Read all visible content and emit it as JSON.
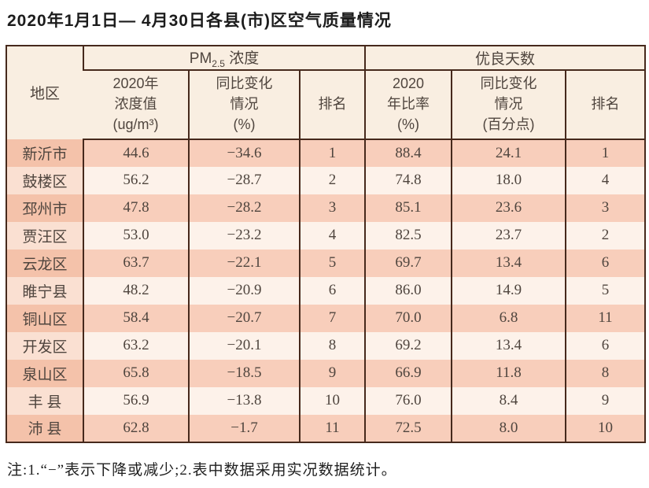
{
  "title": "2020年1月1日— 4月30日各县(市)区空气质量情况",
  "header": {
    "region": "地区",
    "pm25_group": {
      "prefix": "PM",
      "sub": "2.5",
      "suffix": " 浓度"
    },
    "good_days_group": "优良天数",
    "sub_columns": [
      "2020年\n浓度值\n(ug/m³)",
      "同比变化\n情况\n(%)",
      "排名",
      "2020\n年比率\n(%)",
      "同比变化\n情况\n(百分点)",
      "排名"
    ]
  },
  "rows": [
    {
      "region": "新沂市",
      "values": [
        "44.6",
        "−34.6",
        "1",
        "88.4",
        "24.1",
        "1"
      ]
    },
    {
      "region": "鼓楼区",
      "values": [
        "56.2",
        "−28.7",
        "2",
        "74.8",
        "18.0",
        "4"
      ]
    },
    {
      "region": "邳州市",
      "values": [
        "47.8",
        "−28.2",
        "3",
        "85.1",
        "23.6",
        "3"
      ]
    },
    {
      "region": "贾汪区",
      "values": [
        "53.0",
        "−23.2",
        "4",
        "82.5",
        "23.7",
        "2"
      ]
    },
    {
      "region": "云龙区",
      "values": [
        "63.7",
        "−22.1",
        "5",
        "69.7",
        "13.4",
        "6"
      ]
    },
    {
      "region": "睢宁县",
      "values": [
        "48.2",
        "−20.9",
        "6",
        "86.0",
        "14.9",
        "5"
      ]
    },
    {
      "region": "铜山区",
      "values": [
        "58.4",
        "−20.7",
        "7",
        "70.0",
        "6.8",
        "11"
      ]
    },
    {
      "region": "开发区",
      "values": [
        "63.2",
        "−20.1",
        "8",
        "69.2",
        "13.4",
        "6"
      ]
    },
    {
      "region": "泉山区",
      "values": [
        "65.8",
        "−18.5",
        "9",
        "66.9",
        "11.8",
        "8"
      ]
    },
    {
      "region": "丰 县",
      "values": [
        "56.9",
        "−13.8",
        "10",
        "76.0",
        "8.4",
        "9"
      ]
    },
    {
      "region": "沛 县",
      "values": [
        "62.8",
        "−1.7",
        "11",
        "72.5",
        "8.0",
        "10"
      ]
    }
  ],
  "note": "注:1.“−”表示下降或减少;2.表中数据采用实况数据统计。",
  "colors": {
    "border": "#46291c",
    "row_odd": "#f8cebb",
    "row_odd_region": "#f4c2aa",
    "row_even": "#fdf2ea",
    "row_even_region": "#fae0d2",
    "header_bg": "#f9eee1",
    "text": "#4f453e"
  }
}
